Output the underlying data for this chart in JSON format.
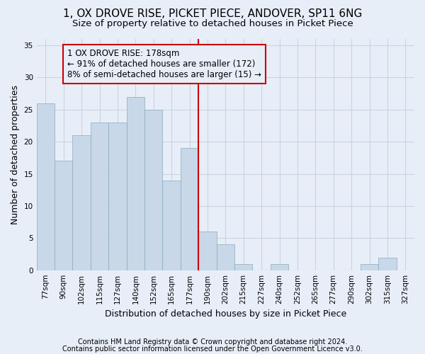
{
  "title": "1, OX DROVE RISE, PICKET PIECE, ANDOVER, SP11 6NG",
  "subtitle": "Size of property relative to detached houses in Picket Piece",
  "xlabel": "Distribution of detached houses by size in Picket Piece",
  "ylabel": "Number of detached properties",
  "categories": [
    "77sqm",
    "90sqm",
    "102sqm",
    "115sqm",
    "127sqm",
    "140sqm",
    "152sqm",
    "165sqm",
    "177sqm",
    "190sqm",
    "202sqm",
    "215sqm",
    "227sqm",
    "240sqm",
    "252sqm",
    "265sqm",
    "277sqm",
    "290sqm",
    "302sqm",
    "315sqm",
    "327sqm"
  ],
  "values": [
    26,
    17,
    21,
    23,
    23,
    27,
    25,
    14,
    19,
    6,
    4,
    1,
    0,
    1,
    0,
    0,
    0,
    0,
    1,
    2,
    0
  ],
  "bar_color": "#c8d8e8",
  "bar_edge_color": "#8aaabb",
  "grid_color": "#c8d4e4",
  "vline_x_idx": 8,
  "vline_color": "#cc0000",
  "annotation_text": "1 OX DROVE RISE: 178sqm\n← 91% of detached houses are smaller (172)\n8% of semi-detached houses are larger (15) →",
  "annotation_box_color": "#cc0000",
  "ylim": [
    0,
    36
  ],
  "yticks": [
    0,
    5,
    10,
    15,
    20,
    25,
    30,
    35
  ],
  "footnote1": "Contains HM Land Registry data © Crown copyright and database right 2024.",
  "footnote2": "Contains public sector information licensed under the Open Government Licence v3.0.",
  "background_color": "#e8eef8",
  "title_fontsize": 11,
  "subtitle_fontsize": 9.5,
  "label_fontsize": 9,
  "tick_fontsize": 7.5,
  "annotation_fontsize": 8.5,
  "footnote_fontsize": 7
}
